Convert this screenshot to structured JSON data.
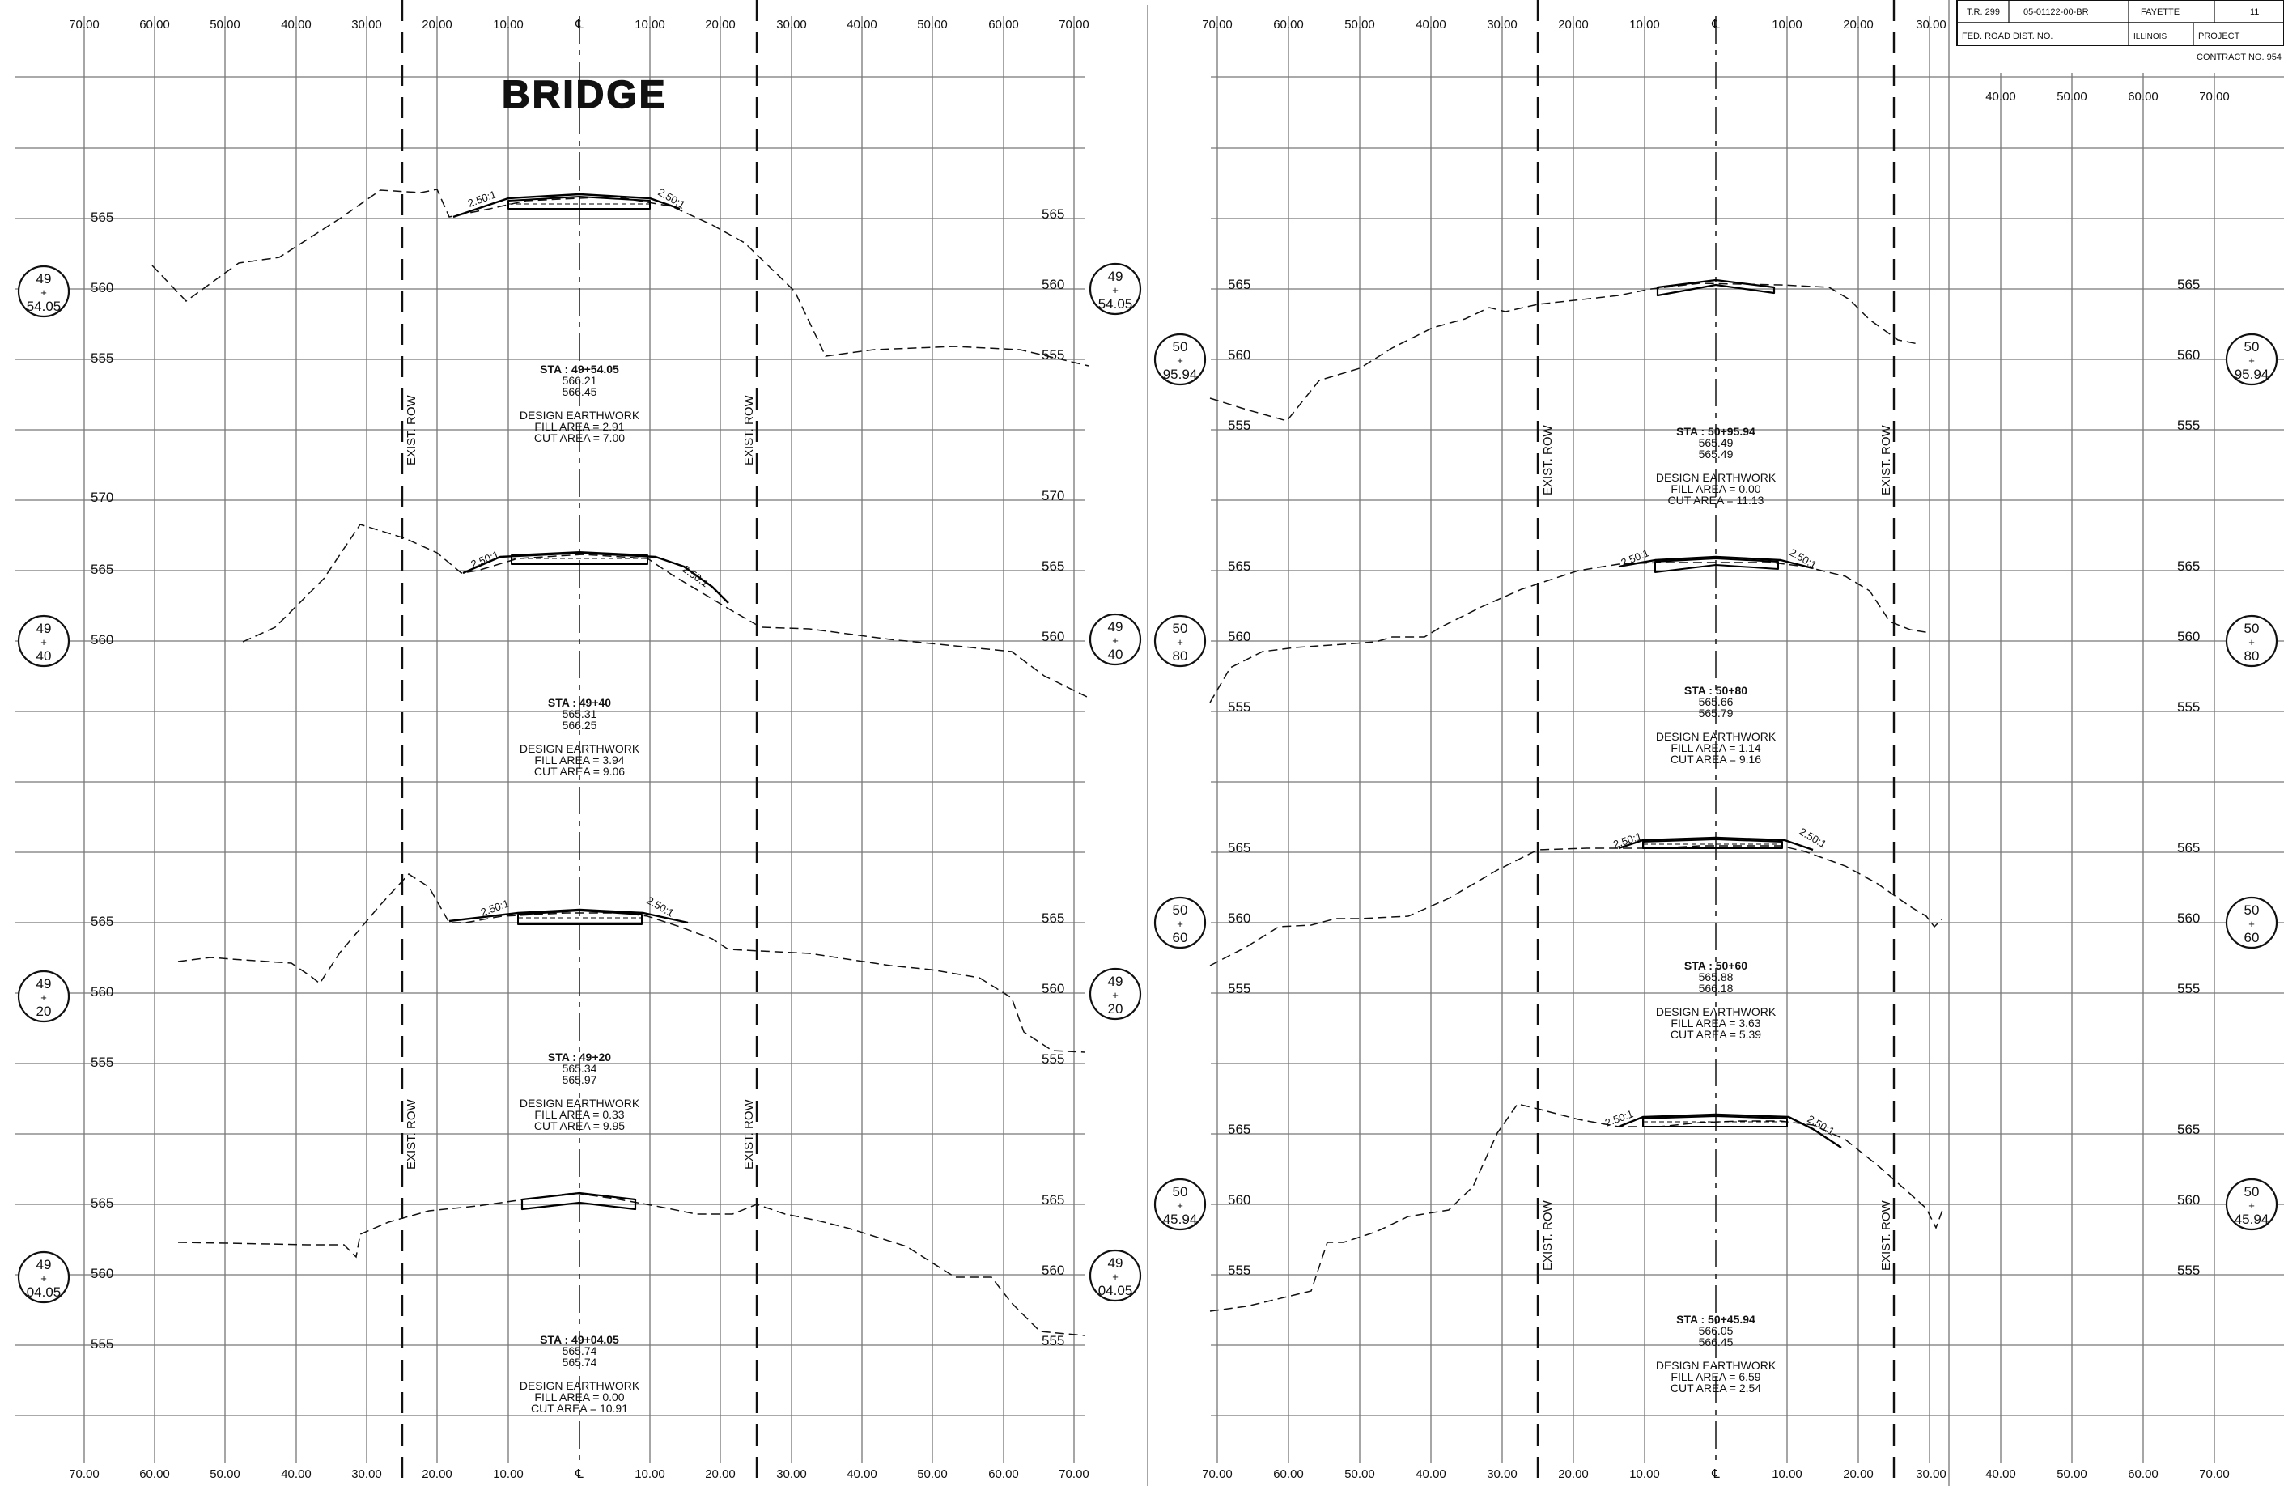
{
  "sheet": {
    "title": "BRIDGE",
    "centerline_symbol": "℄",
    "row_label": "EXIST. ROW"
  },
  "title_block": {
    "route": "T.R. 299",
    "section": "05-01122-00-BR",
    "county": "FAYETTE",
    "sheet_no": "11",
    "fed_road_dist": "FED. ROAD DIST. NO.",
    "state": "ILLINOIS",
    "project": "PROJECT",
    "contract": "CONTRACT NO. 954"
  },
  "top_axis": {
    "left": [
      "70.00",
      "60.00",
      "50.00",
      "40.00",
      "30.00",
      "20.00",
      "10.00",
      "℄",
      "10.00",
      "20.00",
      "30.00",
      "40.00",
      "50.00",
      "60.00",
      "70.00"
    ],
    "right": [
      "70.00",
      "60.00",
      "50.00",
      "40.00",
      "30.00",
      "20.00",
      "10.00",
      "℄",
      "10.00",
      "20.00",
      "30.00"
    ],
    "right_offsheet": [
      "40.00",
      "50.00",
      "60.00",
      "70.00"
    ]
  },
  "bottom_axis": {
    "left": [
      "70.00",
      "60.00",
      "50.00",
      "40.00",
      "30.00",
      "20.00",
      "10.00",
      "℄",
      "10.00",
      "20.00",
      "30.00",
      "40.00",
      "50.00",
      "60.00",
      "70.00"
    ],
    "right": [
      "70.00",
      "60.00",
      "50.00",
      "40.00",
      "30.00",
      "20.00",
      "10.00",
      "℄",
      "10.00",
      "20.00",
      "30.00",
      "40.00",
      "50.00",
      "60.00",
      "70.00"
    ]
  },
  "slope_label": "2.50:1",
  "sections": [
    {
      "id": "s1",
      "sta": "STA : 49+54.05",
      "el1": "566.21",
      "el2": "566.45",
      "design": "DESIGN EARTHWORK",
      "fill": "FILL AREA = 2.91",
      "cut": "CUT AREA = 7.00",
      "bubble_top": "49",
      "bubble_bot": "54.05",
      "elev": [
        "565",
        "560",
        "555"
      ],
      "elev_r": [
        "565",
        "560",
        "555"
      ]
    },
    {
      "id": "s2",
      "sta": "STA : 49+40",
      "el1": "565.31",
      "el2": "566.25",
      "design": "DESIGN EARTHWORK",
      "fill": "FILL AREA = 3.94",
      "cut": "CUT AREA = 9.06",
      "bubble_top": "49",
      "bubble_bot": "40",
      "elev": [
        "570",
        "565",
        "560"
      ],
      "elev_r": [
        "570",
        "565",
        "560"
      ]
    },
    {
      "id": "s3",
      "sta": "STA : 49+20",
      "el1": "565.34",
      "el2": "565.97",
      "design": "DESIGN EARTHWORK",
      "fill": "FILL AREA = 0.33",
      "cut": "CUT AREA = 9.95",
      "bubble_top": "49",
      "bubble_bot": "20",
      "elev": [
        "565",
        "560",
        "555"
      ],
      "elev_r": [
        "565",
        "560",
        "555"
      ]
    },
    {
      "id": "s4",
      "sta": "STA : 49+04.05",
      "el1": "565.74",
      "el2": "565.74",
      "design": "DESIGN EARTHWORK",
      "fill": "FILL AREA = 0.00",
      "cut": "CUT AREA = 10.91",
      "bubble_top": "49",
      "bubble_bot": "04.05",
      "elev": [
        "565",
        "560",
        "555"
      ],
      "elev_r": [
        "565",
        "560",
        "555"
      ]
    },
    {
      "id": "s5",
      "sta": "STA : 50+95.94",
      "el1": "565.49",
      "el2": "565.49",
      "design": "DESIGN EARTHWORK",
      "fill": "FILL AREA = 0.00",
      "cut": "CUT AREA = 11.13",
      "bubble_top": "50",
      "bubble_bot": "95.94",
      "elev": [
        "565",
        "560",
        "555"
      ],
      "elev_r": [
        "565",
        "560",
        "555"
      ]
    },
    {
      "id": "s6",
      "sta": "STA : 50+80",
      "el1": "565.66",
      "el2": "565.79",
      "design": "DESIGN EARTHWORK",
      "fill": "FILL AREA = 1.14",
      "cut": "CUT AREA = 9.16",
      "bubble_top": "50",
      "bubble_bot": "80",
      "elev": [
        "565",
        "560",
        "555"
      ],
      "elev_r": [
        "565",
        "560",
        "555"
      ]
    },
    {
      "id": "s7",
      "sta": "STA : 50+60",
      "el1": "565.88",
      "el2": "566.18",
      "design": "DESIGN EARTHWORK",
      "fill": "FILL AREA = 3.63",
      "cut": "CUT AREA = 5.39",
      "bubble_top": "50",
      "bubble_bot": "60",
      "elev": [
        "565",
        "560",
        "555"
      ],
      "elev_r": [
        "565",
        "560",
        "555"
      ]
    },
    {
      "id": "s8",
      "sta": "STA : 50+45.94",
      "el1": "566.05",
      "el2": "566.45",
      "design": "DESIGN EARTHWORK",
      "fill": "FILL AREA = 6.59",
      "cut": "CUT AREA = 2.54",
      "bubble_top": "50",
      "bubble_bot": "45.94",
      "elev": [
        "565",
        "560",
        "555"
      ],
      "elev_r": [
        "565",
        "560",
        "555"
      ]
    }
  ]
}
